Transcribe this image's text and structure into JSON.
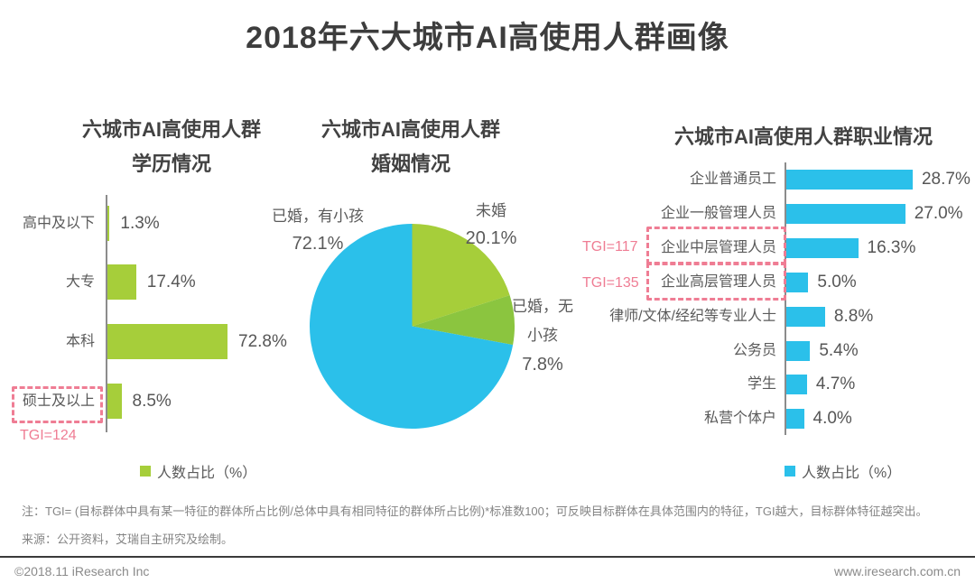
{
  "page_title": "2018年六大城市AI高使用人群画像",
  "colors": {
    "green": "#a6ce3a",
    "green_dark": "#8bc53f",
    "blue": "#2bc0ea",
    "pink": "#ef7d94",
    "axis_gray": "#8c8c8c"
  },
  "education": {
    "title_line1": "六城市AI高使用人群",
    "title_line2": "学历情况",
    "legend": "人数占比（%）"
  },
  "marriage": {
    "title_line1": "六城市AI高使用人群",
    "title_line2": "婚姻情况"
  },
  "occupation": {
    "title": "六城市AI高使用人群职业情况",
    "legend": "人数占比（%）"
  },
  "footer": {
    "note": "注：TGI= (目标群体中具有某一特征的群体所占比例/总体中具有相同特征的群体所占比例)*标准数100；可反映目标群体在具体范围内的特征，TGI越大，目标群体特征越突出。",
    "source": "来源：公开资料，艾瑞自主研究及绘制。",
    "copyright": "©2018.11 iResearch Inc",
    "website": "www.iresearch.com.cn"
  },
  "chart_data": [
    {
      "id": "education",
      "type": "bar",
      "orientation": "horizontal",
      "title": "六城市AI高使用人群学历情况",
      "categories": [
        "高中及以下",
        "大专",
        "本科",
        "硕士及以上"
      ],
      "values": [
        1.3,
        17.4,
        72.8,
        8.5
      ],
      "value_labels": [
        "1.3%",
        "17.4%",
        "72.8%",
        "8.5%"
      ],
      "unit": "%",
      "bar_color": "#a6ce3a",
      "legend": "人数占比（%）",
      "annotation": {
        "category": "硕士及以上",
        "tgi": "TGI=124"
      }
    },
    {
      "id": "marriage",
      "type": "pie",
      "title": "六城市AI高使用人群婚姻情况",
      "slices": [
        {
          "label": "未婚",
          "value": 20.1,
          "value_label": "20.1%",
          "color": "#a6ce3a"
        },
        {
          "label": "已婚，无小孩",
          "value": 7.8,
          "value_label": "7.8%",
          "color": "#8bc53f"
        },
        {
          "label": "已婚，有小孩",
          "value": 72.1,
          "value_label": "72.1%",
          "color": "#2bc0ea"
        }
      ]
    },
    {
      "id": "occupation",
      "type": "bar",
      "orientation": "horizontal",
      "title": "六城市AI高使用人群职业情况",
      "categories": [
        "企业普通员工",
        "企业一般管理人员",
        "企业中层管理人员",
        "企业高层管理人员",
        "律师/文体/经纪等专业人士",
        "公务员",
        "学生",
        "私营个体户"
      ],
      "values": [
        28.7,
        27.0,
        16.3,
        5.0,
        8.8,
        5.4,
        4.7,
        4.0
      ],
      "value_labels": [
        "28.7%",
        "27.0%",
        "16.3%",
        "5.0%",
        "8.8%",
        "5.4%",
        "4.7%",
        "4.0%"
      ],
      "unit": "%",
      "bar_color": "#2bc0ea",
      "legend": "人数占比（%）",
      "annotations": [
        {
          "category": "企业中层管理人员",
          "tgi": "TGI=117"
        },
        {
          "category": "企业高层管理人员",
          "tgi": "TGI=135"
        }
      ]
    }
  ]
}
